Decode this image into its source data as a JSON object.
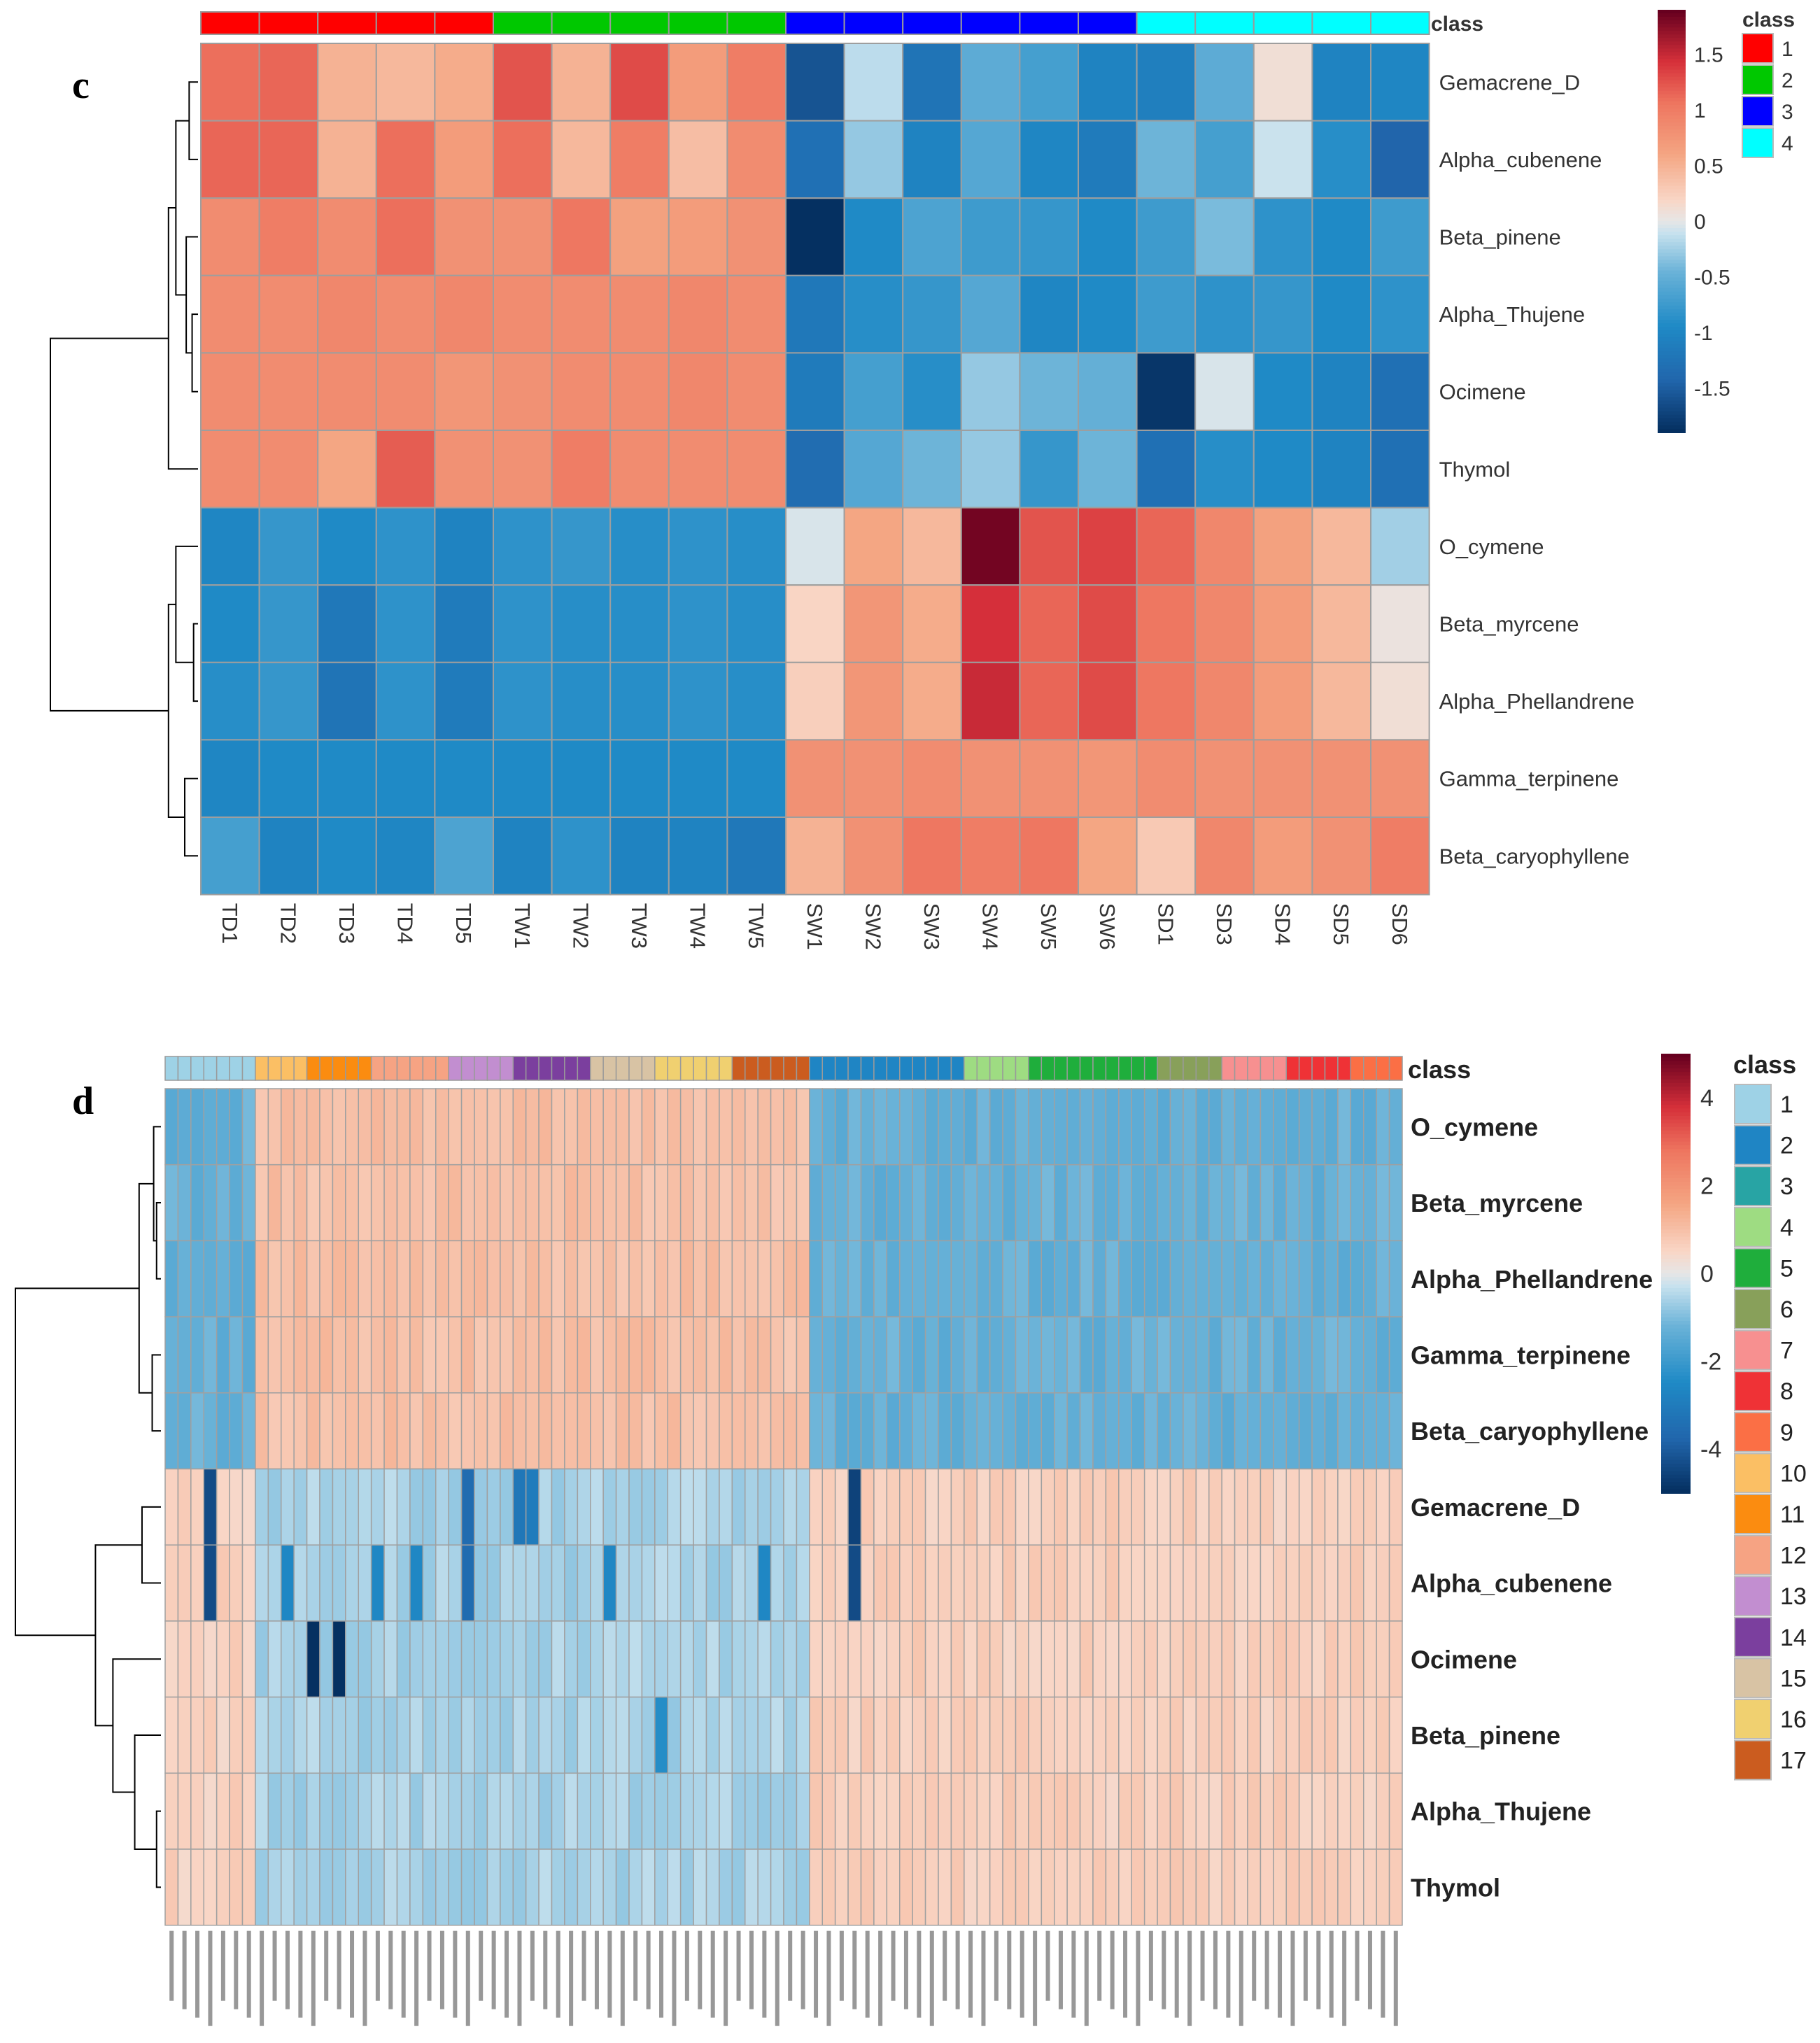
{
  "panels": [
    {
      "panel_label": "c",
      "chart_data": {
        "type": "heatmap",
        "title": "",
        "columns": [
          "TD1",
          "TD2",
          "TD3",
          "TD4",
          "TD5",
          "TW1",
          "TW2",
          "TW3",
          "TW4",
          "TW5",
          "SW1",
          "SW2",
          "SW3",
          "SW4",
          "SW5",
          "SW6",
          "SD1",
          "SD3",
          "SD4",
          "SD5",
          "SD6"
        ],
        "column_classes": [
          1,
          1,
          1,
          1,
          1,
          2,
          2,
          2,
          2,
          2,
          3,
          3,
          3,
          3,
          3,
          3,
          4,
          4,
          4,
          4,
          4
        ],
        "rows": [
          "Gemacrene_D",
          "Alpha_cubenene",
          "Beta_pinene",
          "Alpha_Thujene",
          "Ocimene",
          "Thymol",
          "O_cymene",
          "Beta_myrcene",
          "Alpha_Phellandrene",
          "Gamma_terpinene",
          "Beta_caryophyllene"
        ],
        "values": [
          [
            1.1,
            1.15,
            0.5,
            0.45,
            0.55,
            1.25,
            0.5,
            1.3,
            0.7,
            1.0,
            -1.6,
            -0.15,
            -1.25,
            -0.55,
            -0.7,
            -1.05,
            -1.1,
            -0.55,
            0.1,
            -1.05,
            -1.0
          ],
          [
            1.15,
            1.15,
            0.5,
            1.1,
            0.7,
            1.1,
            0.45,
            1.0,
            0.4,
            0.85,
            -1.3,
            -0.3,
            -1.05,
            -0.6,
            -1.0,
            -1.15,
            -0.45,
            -0.7,
            -0.1,
            -0.9,
            -1.45
          ],
          [
            0.85,
            1.0,
            0.85,
            1.1,
            0.8,
            0.8,
            1.05,
            0.65,
            0.7,
            0.8,
            -1.9,
            -0.95,
            -0.65,
            -0.75,
            -0.8,
            -0.95,
            -0.75,
            -0.4,
            -0.85,
            -0.95,
            -0.75
          ],
          [
            0.85,
            0.85,
            0.9,
            0.85,
            0.9,
            0.85,
            0.85,
            0.85,
            0.9,
            0.85,
            -1.2,
            -0.9,
            -0.8,
            -0.6,
            -1.0,
            -0.95,
            -0.75,
            -0.85,
            -0.8,
            -0.95,
            -0.85
          ],
          [
            0.85,
            0.85,
            0.85,
            0.85,
            0.75,
            0.8,
            0.85,
            0.85,
            0.9,
            0.85,
            -1.15,
            -0.7,
            -0.9,
            -0.3,
            -0.45,
            -0.5,
            -1.85,
            -0.05,
            -0.95,
            -1.05,
            -1.3
          ],
          [
            0.85,
            0.85,
            0.6,
            1.2,
            0.8,
            0.8,
            1.0,
            0.85,
            0.85,
            0.85,
            -1.35,
            -0.6,
            -0.45,
            -0.3,
            -0.8,
            -0.45,
            -1.3,
            -0.9,
            -0.95,
            -1.05,
            -1.3
          ],
          [
            -1.0,
            -0.8,
            -0.95,
            -0.85,
            -1.05,
            -0.85,
            -0.8,
            -0.9,
            -0.85,
            -0.9,
            -0.05,
            0.6,
            0.45,
            1.85,
            1.25,
            1.35,
            1.15,
            0.9,
            0.65,
            0.45,
            -0.25
          ],
          [
            -0.95,
            -0.8,
            -1.2,
            -0.85,
            -1.15,
            -0.85,
            -0.9,
            -0.9,
            -0.85,
            -0.9,
            0.2,
            0.75,
            0.55,
            1.45,
            1.15,
            1.3,
            1.05,
            0.9,
            0.7,
            0.45,
            0.05
          ],
          [
            -0.9,
            -0.8,
            -1.25,
            -0.85,
            -1.15,
            -0.85,
            -0.9,
            -0.9,
            -0.85,
            -0.9,
            0.25,
            0.75,
            0.55,
            1.5,
            1.15,
            1.3,
            1.05,
            0.9,
            0.7,
            0.45,
            0.1
          ],
          [
            -1.0,
            -0.95,
            -0.95,
            -0.95,
            -0.95,
            -0.95,
            -0.95,
            -0.95,
            -0.95,
            -0.95,
            0.8,
            0.8,
            0.85,
            0.8,
            0.8,
            0.75,
            0.85,
            0.8,
            0.8,
            0.8,
            0.8
          ],
          [
            -0.7,
            -1.05,
            -0.95,
            -1.0,
            -0.65,
            -1.05,
            -0.85,
            -1.05,
            -1.05,
            -1.2,
            0.5,
            0.8,
            1.05,
            1.0,
            1.05,
            0.6,
            0.3,
            0.9,
            0.7,
            0.8,
            1.0
          ]
        ],
        "class_label": "class",
        "class_legend": [
          {
            "label": "1",
            "color": "#ff0000"
          },
          {
            "label": "2",
            "color": "#00c800"
          },
          {
            "label": "3",
            "color": "#0000ff"
          },
          {
            "label": "4",
            "color": "#00ffff"
          }
        ],
        "colorbar": {
          "min": -1.9,
          "max": 1.9,
          "ticks": [
            "1.5",
            "1",
            "0.5",
            "0",
            "-0.5",
            "-1",
            "-1.5"
          ],
          "tick_values": [
            1.5,
            1,
            0.5,
            0,
            -0.5,
            -1,
            -1.5
          ]
        },
        "row_dendrogram": true
      }
    },
    {
      "panel_label": "d",
      "chart_data": {
        "type": "heatmap",
        "title": "",
        "n_columns": 96,
        "column_labels_illegible": true,
        "column_class_runs": [
          [
            1,
            7
          ],
          [
            10,
            4
          ],
          [
            11,
            5
          ],
          [
            12,
            6
          ],
          [
            13,
            5
          ],
          [
            14,
            6
          ],
          [
            15,
            5
          ],
          [
            16,
            6
          ],
          [
            17,
            6
          ],
          [
            2,
            12
          ],
          [
            4,
            5
          ],
          [
            5,
            10
          ],
          [
            6,
            5
          ],
          [
            7,
            5
          ],
          [
            8,
            5
          ],
          [
            9,
            4
          ]
        ],
        "rows": [
          "O_cymene",
          "Beta_myrcene",
          "Alpha_Phellandrene",
          "Gamma_terpinene",
          "Beta_caryophyllene",
          "Gemacrene_D",
          "Alpha_cubenene",
          "Ocimene",
          "Beta_pinene",
          "Alpha_Thujene",
          "Thymol"
        ],
        "base_values": {
          "group_a_rows": [
            0,
            1,
            2,
            3,
            4
          ],
          "group_b_rows": [
            5,
            6,
            7,
            8,
            9,
            10
          ],
          "split_column": 50,
          "group_a_left": -1.3,
          "group_a_middle": 1.0,
          "group_a_right": -1.3,
          "group_b_left": 0.6,
          "group_b_middle": -0.6,
          "group_b_right": 0.65
        },
        "outlier_cells": [
          {
            "row": "Gemacrene_D",
            "col": 3,
            "value": -4.4
          },
          {
            "row": "Gemacrene_D",
            "col": 23,
            "value": -3.6
          },
          {
            "row": "Gemacrene_D",
            "col": 27,
            "value": -3.2
          },
          {
            "row": "Gemacrene_D",
            "col": 28,
            "value": -3.0
          },
          {
            "row": "Gemacrene_D",
            "col": 53,
            "value": -4.6
          },
          {
            "row": "Alpha_cubenene",
            "col": 3,
            "value": -4.4
          },
          {
            "row": "Alpha_cubenene",
            "col": 9,
            "value": -2.6
          },
          {
            "row": "Alpha_cubenene",
            "col": 16,
            "value": -2.6
          },
          {
            "row": "Alpha_cubenene",
            "col": 19,
            "value": -2.6
          },
          {
            "row": "Alpha_cubenene",
            "col": 23,
            "value": -3.6
          },
          {
            "row": "Alpha_cubenene",
            "col": 34,
            "value": -2.6
          },
          {
            "row": "Alpha_cubenene",
            "col": 46,
            "value": -2.6
          },
          {
            "row": "Alpha_cubenene",
            "col": 53,
            "value": -4.4
          },
          {
            "row": "Ocimene",
            "col": 11,
            "value": -5.0
          },
          {
            "row": "Ocimene",
            "col": 13,
            "value": -5.0
          },
          {
            "row": "Beta_pinene",
            "col": 38,
            "value": -2.4
          }
        ],
        "class_label": "class",
        "class_legend": [
          {
            "label": "1",
            "color": "#9ed2e6"
          },
          {
            "label": "2",
            "color": "#1f85c4"
          },
          {
            "label": "3",
            "color": "#28a4a4"
          },
          {
            "label": "4",
            "color": "#9edc82"
          },
          {
            "label": "5",
            "color": "#1fae3c"
          },
          {
            "label": "6",
            "color": "#88a05a"
          },
          {
            "label": "7",
            "color": "#f79090"
          },
          {
            "label": "8",
            "color": "#ef3236"
          },
          {
            "label": "9",
            "color": "#fb6f45"
          },
          {
            "label": "10",
            "color": "#fbbf64"
          },
          {
            "label": "11",
            "color": "#fb8c10"
          },
          {
            "label": "12",
            "color": "#f6a383"
          },
          {
            "label": "13",
            "color": "#c28ed0"
          },
          {
            "label": "14",
            "color": "#7b3f9e"
          },
          {
            "label": "15",
            "color": "#d8c3a4"
          },
          {
            "label": "16",
            "color": "#f0d070"
          },
          {
            "label": "17",
            "color": "#cb5c1f"
          }
        ],
        "colorbar": {
          "min": -5,
          "max": 5,
          "ticks": [
            "4",
            "2",
            "0",
            "-2",
            "-4"
          ],
          "tick_values": [
            4,
            2,
            0,
            -2,
            -4
          ]
        },
        "row_dendrogram": true
      }
    }
  ]
}
